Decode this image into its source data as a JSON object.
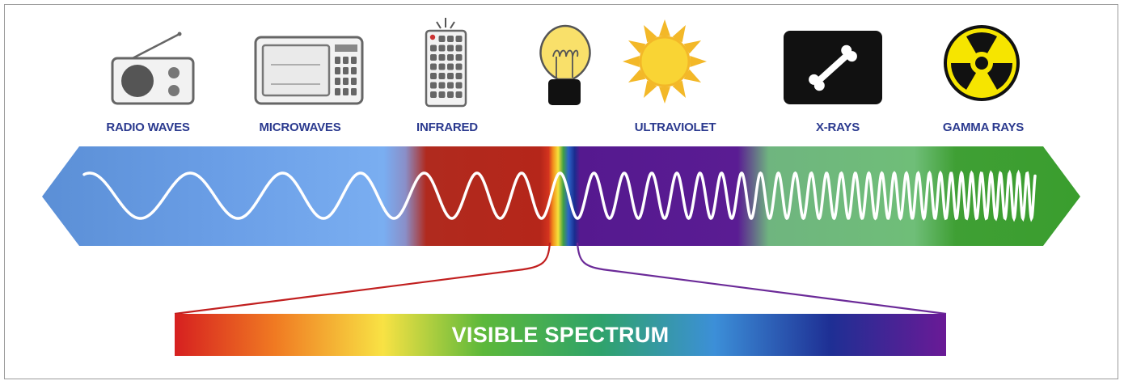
{
  "bands": [
    {
      "label": "RADIO WAVES",
      "icon": "radio-icon"
    },
    {
      "label": "MICROWAVES",
      "icon": "microwave-icon"
    },
    {
      "label": "INFRARED",
      "icon": "remote-control-icon"
    },
    {
      "label": "",
      "icon": "light-bulb-icon"
    },
    {
      "label": "ULTRAVIOLET",
      "icon": "sun-icon"
    },
    {
      "label": "X-RAYS",
      "icon": "bone-xray-icon"
    },
    {
      "label": "GAMMA RAYS",
      "icon": "radiation-icon"
    }
  ],
  "visible_spectrum": {
    "label": "VISIBLE SPECTRUM"
  },
  "colors": {
    "radio_blue": "#5b8fd6",
    "microwave_blue": "#7aacf0",
    "infrared_red": "#b5261a",
    "ultraviolet_purple": "#55198f",
    "xray_green": "#72c27e",
    "gamma_green": "#3a9e2e",
    "label_navy": "#2b3a8f"
  }
}
